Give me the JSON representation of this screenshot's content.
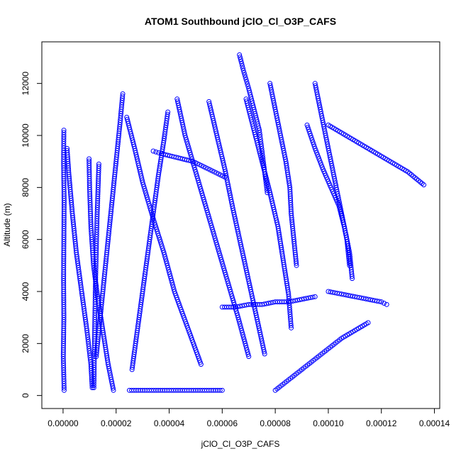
{
  "chart_data": {
    "type": "scatter",
    "title": "ATOM1 Southbound jClO_Cl_O3P_CAFS",
    "xlabel": "jClO_Cl_O3P_CAFS",
    "ylabel": "Altitude (m)",
    "xlim": [
      -8e-06,
      0.000142
    ],
    "ylim": [
      -500,
      13600
    ],
    "x_ticks": [
      0.0,
      2e-05,
      4e-05,
      6e-05,
      8e-05,
      0.0001,
      0.00012,
      0.00014
    ],
    "x_tick_labels": [
      "0.00000",
      "0.00002",
      "0.00004",
      "0.00006",
      "0.00008",
      "0.00010",
      "0.00012",
      "0.00014"
    ],
    "y_ticks": [
      0,
      2000,
      4000,
      6000,
      8000,
      10000,
      12000
    ],
    "y_tick_labels": [
      "0",
      "2000",
      "4000",
      "6000",
      "8000",
      "10000",
      "12000"
    ],
    "grid": false,
    "legend": "none",
    "marker": "open-circle",
    "color": "#0000ff",
    "series": [
      {
        "x": [
          3e-07,
          2e-07,
          4e-07,
          3e-07,
          2e-07,
          3e-07,
          1e-07,
          4e-07
        ],
        "y": [
          10200,
          9000,
          7500,
          6000,
          4500,
          3000,
          1500,
          200
        ]
      },
      {
        "x": [
          1.5e-06,
          2.2e-06,
          3.5e-06,
          5e-06,
          7e-06,
          9e-06,
          1.05e-05,
          1.1e-05
        ],
        "y": [
          9500,
          8500,
          7000,
          5500,
          4000,
          2500,
          1200,
          300
        ]
      },
      {
        "x": [
          9.8e-06,
          1e-05,
          1.05e-05,
          1.15e-05,
          1.3e-05,
          1.5e-05,
          1.7e-05,
          1.9e-05
        ],
        "y": [
          9100,
          8000,
          6500,
          5000,
          3800,
          2500,
          1200,
          200
        ]
      },
      {
        "x": [
          1.35e-05,
          1.32e-05,
          1.28e-05,
          1.25e-05,
          1.22e-05,
          1.2e-05,
          1.18e-05,
          1.16e-05
        ],
        "y": [
          8900,
          8000,
          6800,
          5500,
          4200,
          3000,
          1600,
          300
        ]
      },
      {
        "x": [
          2.25e-05,
          2.15e-05,
          2e-05,
          1.85e-05,
          1.7e-05,
          1.55e-05,
          1.4e-05,
          1.25e-05
        ],
        "y": [
          11600,
          10500,
          9000,
          7500,
          6000,
          4500,
          3000,
          1500
        ]
      },
      {
        "x": [
          2.4e-05,
          2.7e-05,
          3e-05,
          3.4e-05,
          3.8e-05,
          4.2e-05,
          4.7e-05,
          5.2e-05
        ],
        "y": [
          10700,
          9500,
          8200,
          6800,
          5500,
          4000,
          2600,
          1200
        ]
      },
      {
        "x": [
          3.95e-05,
          3.8e-05,
          3.6e-05,
          3.4e-05,
          3.2e-05,
          3e-05,
          2.8e-05,
          2.6e-05
        ],
        "y": [
          10900,
          9800,
          8500,
          7000,
          5500,
          4000,
          2500,
          1000
        ]
      },
      {
        "x": [
          4.3e-05,
          4.6e-05,
          5e-05,
          5.4e-05,
          5.8e-05,
          6.2e-05,
          6.6e-05,
          7e-05
        ],
        "y": [
          11400,
          10000,
          8600,
          7200,
          5800,
          4400,
          3000,
          1500
        ]
      },
      {
        "x": [
          3.4e-05,
          3.7e-05,
          4.1e-05,
          4.5e-05,
          4.9e-05,
          5.3e-05,
          5.7e-05,
          6.1e-05
        ],
        "y": [
          9400,
          9300,
          9200,
          9100,
          9000,
          8800,
          8600,
          8400
        ]
      },
      {
        "x": [
          5.5e-05,
          5.8e-05,
          6.1e-05,
          6.4e-05,
          6.7e-05,
          7e-05,
          7.3e-05,
          7.6e-05
        ],
        "y": [
          11300,
          10000,
          8700,
          7200,
          5800,
          4400,
          3000,
          1600
        ]
      },
      {
        "x": [
          6.65e-05,
          6.8e-05,
          7e-05,
          7.2e-05,
          7.4e-05,
          7.5e-05,
          7.6e-05,
          7.7e-05
        ],
        "y": [
          13100,
          12500,
          11800,
          11000,
          10200,
          9400,
          8600,
          7800
        ]
      },
      {
        "x": [
          6.9e-05,
          7.2e-05,
          7.5e-05,
          7.8e-05,
          8.1e-05,
          8.3e-05,
          8.5e-05,
          8.6e-05
        ],
        "y": [
          11400,
          10200,
          9000,
          7800,
          6500,
          5200,
          3900,
          2600
        ]
      },
      {
        "x": [
          7.8e-05,
          8e-05,
          8.2e-05,
          8.4e-05,
          8.55e-05,
          8.6e-05,
          8.7e-05,
          8.8e-05
        ],
        "y": [
          12000,
          11000,
          10000,
          9000,
          8000,
          7000,
          6000,
          5000
        ]
      },
      {
        "x": [
          9.5e-05,
          9.7e-05,
          9.9e-05,
          0.000101,
          0.000103,
          0.000105,
          0.000107,
          0.000108
        ],
        "y": [
          12000,
          11000,
          10000,
          9000,
          8000,
          7000,
          6000,
          5000
        ]
      },
      {
        "x": [
          9.2e-05,
          9.5e-05,
          9.8e-05,
          0.000101,
          0.000104,
          0.000106,
          0.000108,
          0.000109
        ],
        "y": [
          10400,
          9500,
          8700,
          8000,
          7300,
          6500,
          5500,
          4500
        ]
      },
      {
        "x": [
          0.0001,
          0.000105,
          0.00011,
          0.000115,
          0.00012,
          0.000125,
          0.00013,
          0.000136
        ],
        "y": [
          10400,
          10100,
          9800,
          9500,
          9200,
          8900,
          8600,
          8100
        ]
      },
      {
        "x": [
          2.5e-05,
          3e-05,
          3.5e-05,
          4e-05,
          4.5e-05,
          5e-05,
          5.5e-05,
          6e-05
        ],
        "y": [
          200,
          200,
          200,
          200,
          200,
          200,
          200,
          200
        ]
      },
      {
        "x": [
          6e-05,
          6.5e-05,
          7e-05,
          7.5e-05,
          8e-05,
          8.5e-05,
          9e-05,
          9.5e-05
        ],
        "y": [
          3400,
          3400,
          3500,
          3500,
          3600,
          3600,
          3700,
          3800
        ]
      },
      {
        "x": [
          8e-05,
          8.5e-05,
          9e-05,
          9.5e-05,
          0.0001,
          0.000105,
          0.00011,
          0.000115
        ],
        "y": [
          200,
          600,
          1000,
          1400,
          1800,
          2200,
          2500,
          2800
        ]
      },
      {
        "x": [
          0.0001,
          0.000105,
          0.00011,
          0.000115,
          0.00012,
          0.000122
        ],
        "y": [
          4000,
          3900,
          3800,
          3700,
          3600,
          3500
        ]
      }
    ]
  }
}
